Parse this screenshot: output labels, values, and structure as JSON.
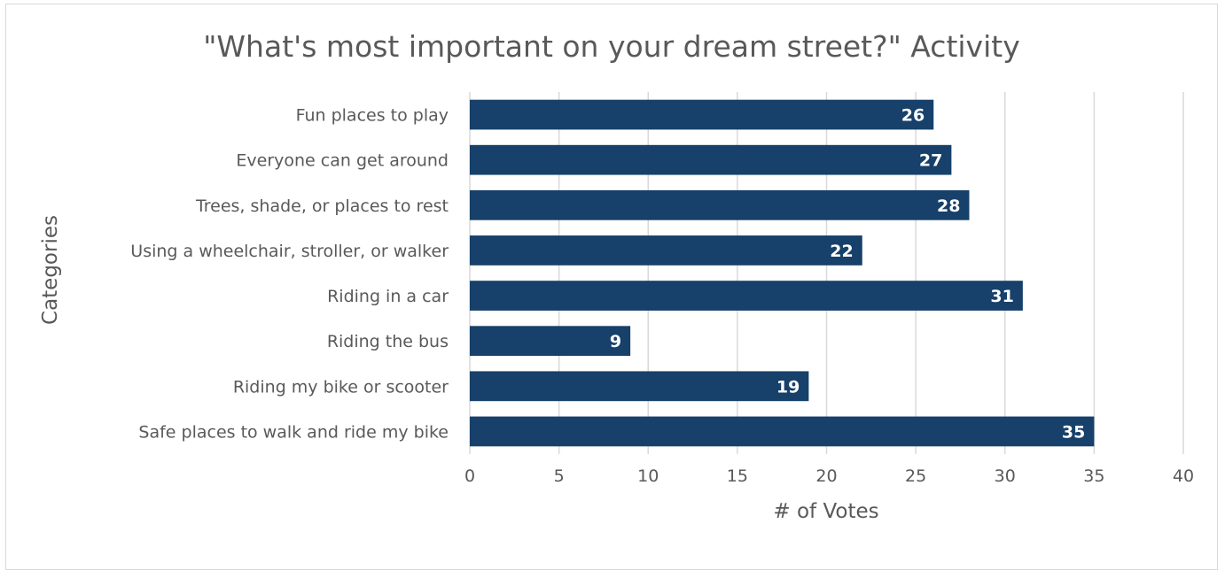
{
  "chart_data": {
    "type": "bar",
    "orientation": "horizontal",
    "title": "\"What's most important on your dream street?\" Activity",
    "xlabel": "# of Votes",
    "ylabel": "Categories",
    "categories": [
      "Fun places to play",
      "Everyone can get around",
      "Trees, shade, or places to rest",
      "Using a wheelchair, stroller, or walker",
      "Riding in a car",
      "Riding the bus",
      "Riding my bike or scooter",
      "Safe places to walk and ride my bike"
    ],
    "values": [
      26,
      27,
      28,
      22,
      31,
      9,
      19,
      35
    ],
    "xlim": [
      0,
      40
    ],
    "xticks": [
      0,
      5,
      10,
      15,
      20,
      25,
      30,
      35,
      40
    ],
    "grid": "vertical",
    "bar_color": "#17406a",
    "data_label_color": "#ffffff",
    "show_data_labels": true
  }
}
